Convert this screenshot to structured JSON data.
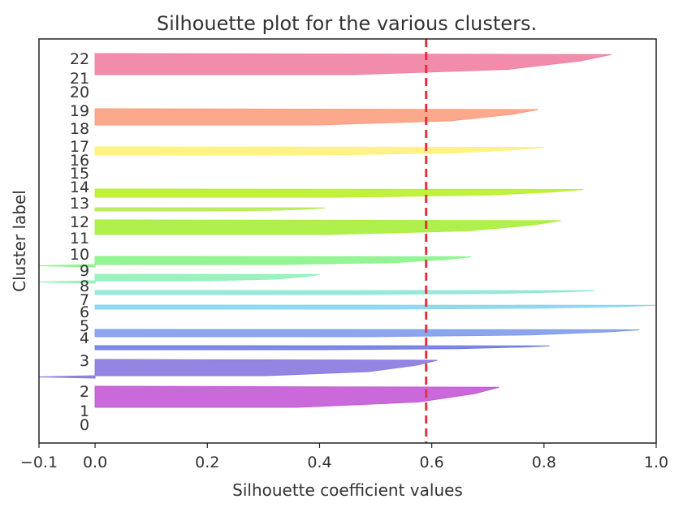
{
  "chart_data": {
    "type": "area",
    "title": "Silhouette plot for the various clusters.",
    "xlabel": "Silhouette coefficient values",
    "ylabel": "Cluster label",
    "xlim": [
      -0.1,
      1.0
    ],
    "xticks": [
      "−0.1",
      "0.0",
      "0.2",
      "0.4",
      "0.6",
      "0.8",
      "1.0"
    ],
    "xtick_values": [
      -0.1,
      0.0,
      0.2,
      0.4,
      0.6,
      0.8,
      1.0
    ],
    "average_silhouette": 0.59,
    "average_line_color": "#e8303c",
    "cluster_labels": [
      "0",
      "1",
      "2",
      "3",
      "4",
      "5",
      "6",
      "7",
      "8",
      "9",
      "10",
      "11",
      "12",
      "13",
      "14",
      "15",
      "16",
      "17",
      "18",
      "19",
      "20",
      "21",
      "22"
    ],
    "clusters": [
      {
        "label": "2",
        "max": 0.72,
        "min": 0.0,
        "color": "#c45ad6"
      },
      {
        "label": "3",
        "max": 0.61,
        "min": -0.1,
        "color": "#8a78e0"
      },
      {
        "label": "4",
        "max": 0.81,
        "min": 0.0,
        "color": "#6f7ce0"
      },
      {
        "label": "5",
        "max": 0.97,
        "min": 0.0,
        "color": "#7f9bea"
      },
      {
        "label": "6",
        "max": 1.0,
        "min": 0.0,
        "color": "#86d5ef"
      },
      {
        "label": "7",
        "max": 0.89,
        "min": 0.0,
        "color": "#8ee6d6"
      },
      {
        "label": "9",
        "max": 0.4,
        "min": -0.1,
        "color": "#8ef2b8"
      },
      {
        "label": "10",
        "max": 0.67,
        "min": -0.1,
        "color": "#8af48a"
      },
      {
        "label": "12",
        "max": 0.83,
        "min": 0.0,
        "color": "#a6ee3a"
      },
      {
        "label": "13",
        "max": 0.41,
        "min": 0.0,
        "color": "#b4ec52"
      },
      {
        "label": "14",
        "max": 0.87,
        "min": 0.0,
        "color": "#b8f028"
      },
      {
        "label": "16",
        "max": 0.8,
        "min": 0.0,
        "color": "#fff17a"
      },
      {
        "label": "19",
        "max": 0.79,
        "min": 0.0,
        "color": "#fb9e80"
      },
      {
        "label": "22",
        "max": 0.92,
        "min": 0.0,
        "color": "#f081a2"
      }
    ],
    "grid": false
  }
}
